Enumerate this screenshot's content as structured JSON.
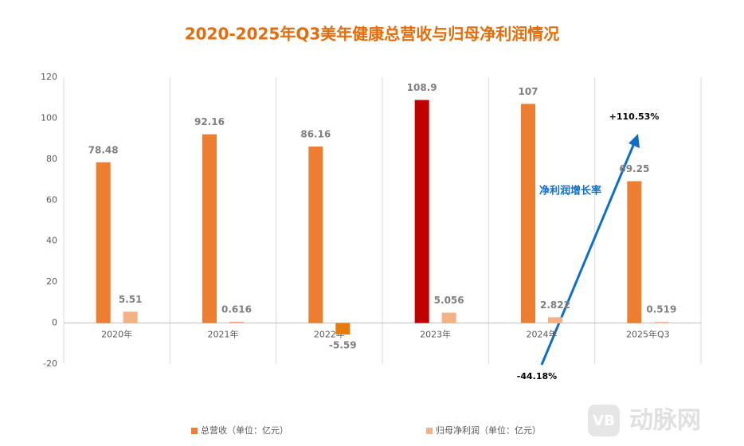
{
  "chart_data": {
    "type": "bar",
    "title": "2020-2025年Q3美年健康总营收与归母净利润情况",
    "categories": [
      "2020年",
      "2021年",
      "2022年",
      "2023年",
      "2024年",
      "2025年Q3"
    ],
    "series": [
      {
        "name": "总营收（单位：亿元）",
        "color": "#ED7D31",
        "colors": [
          "#ED7D31",
          "#ED7D31",
          "#ED7D31",
          "#C00000",
          "#ED7D31",
          "#ED7D31"
        ],
        "values": [
          78.48,
          92.16,
          86.16,
          108.9,
          107,
          69.25
        ]
      },
      {
        "name": "归母净利润（单位：亿元）",
        "color": "#F4B183",
        "colors": [
          "#F4B183",
          "#F4B183",
          "#E97A0C",
          "#F4B183",
          "#F4B183",
          "#F4B183"
        ],
        "values": [
          5.51,
          0.616,
          -5.59,
          5.056,
          2.822,
          0.519
        ]
      }
    ],
    "ylim": [
      -20,
      120
    ],
    "yticks": [
      -20,
      0,
      20,
      40,
      60,
      80,
      100,
      120
    ],
    "annotations": [
      "净利润增长率",
      "+110.53%",
      "-44.18%"
    ],
    "watermark": "动脉网"
  }
}
